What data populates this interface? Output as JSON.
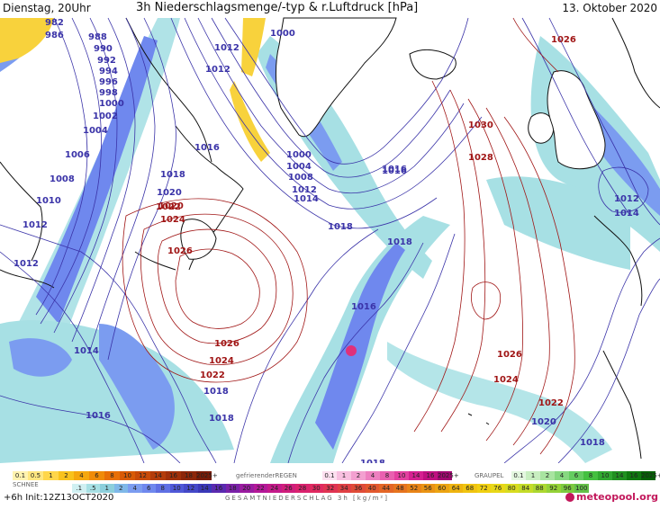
{
  "header": {
    "day": "Dienstag, 20Uhr",
    "title": "3h Niederschlagsmenge/-typ & r.Luftdruck [hPa]",
    "date": "13. Oktober 2020"
  },
  "isobars": {
    "blue": [
      "982",
      "986",
      "988",
      "990",
      "992",
      "994",
      "996",
      "998",
      "1000",
      "1002",
      "1004",
      "1006",
      "1008",
      "1010",
      "1012",
      "1012",
      "1012",
      "1012",
      "1000",
      "1000",
      "1004",
      "1008",
      "1012",
      "1014",
      "1016",
      "1016",
      "1018",
      "1018",
      "1016",
      "1018",
      "1018",
      "1014",
      "1016",
      "1018",
      "1020",
      "1016",
      "1020",
      "1018",
      "1016",
      "1012",
      "1014",
      "1018"
    ],
    "red": [
      "1020",
      "1022",
      "1024",
      "1026",
      "1026",
      "1024",
      "1022",
      "1030",
      "1028",
      "1026",
      "1026",
      "1024",
      "1022"
    ]
  },
  "legend": {
    "snow_label": "SCHNEE",
    "snow_values": [
      "0.1",
      "0.5",
      "1",
      "2",
      "4",
      "6",
      "8",
      "10",
      "12",
      "14",
      "16",
      "18",
      "2025+"
    ],
    "freezing_rain_label": "gefrierenderREGEN",
    "freezing_values": [
      "0.1",
      "1",
      "2",
      "4",
      "8",
      "10",
      "14",
      "16",
      "2025+"
    ],
    "graupel_label": "GRAUPEL",
    "graupel_values": [
      "0.1",
      "1",
      "2",
      "4",
      "6",
      "8",
      "10",
      "14",
      "16",
      "2025+"
    ],
    "total_values": [
      ".1",
      ".5",
      "1",
      "2",
      "4",
      "6",
      "8",
      "10",
      "12",
      "14",
      "16",
      "18",
      "20",
      "22",
      "24",
      "26",
      "28",
      "30",
      "32",
      "34",
      "36",
      "40",
      "44",
      "48",
      "52",
      "56",
      "60",
      "64",
      "68",
      "72",
      "76",
      "80",
      "84",
      "88",
      "92",
      "96",
      "100"
    ],
    "total_label": "GESAMTNIEDERSCHLAG 3h [kg/m²]"
  },
  "footer": {
    "run": "+6h  Init:12Z13OCT2020",
    "brand": "meteopool.org"
  },
  "colors": {
    "ocean": "#ffffff",
    "coast": "#111111",
    "isobar_low": "#3a33a8",
    "isobar_high": "#a01515",
    "precip_light": "#a7e0e4",
    "precip_mid": "#7b9cf0",
    "precip_heavy": "#4f58d8",
    "precip_extreme": "#e0307a",
    "snow": "#f8d23c"
  }
}
